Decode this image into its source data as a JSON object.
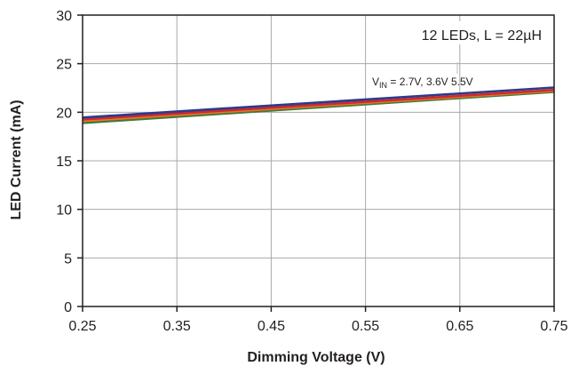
{
  "chart_data": {
    "type": "line",
    "title": "",
    "xlabel": "Dimming Voltage (V)",
    "ylabel": "LED Current (mA)",
    "xlim": [
      0.25,
      0.75
    ],
    "ylim": [
      0,
      30
    ],
    "x_ticks": [
      "0.25",
      "0.35",
      "0.45",
      "0.55",
      "0.65",
      "0.75"
    ],
    "y_ticks": [
      "0",
      "5",
      "10",
      "15",
      "20",
      "25",
      "30"
    ],
    "grid": true,
    "annotations": {
      "condition": "12 LEDs, L = 22µH",
      "vin_main": "V",
      "vin_sub": "IN",
      "vin_values": " = 2.7V, 3.6V 5.5V"
    },
    "series": [
      {
        "color": "#3d7a3a",
        "x": [
          0.25,
          0.75
        ],
        "y": [
          18.9,
          22.1
        ]
      },
      {
        "color": "#e8742b",
        "x": [
          0.25,
          0.75
        ],
        "y": [
          19.1,
          22.2
        ]
      },
      {
        "color": "#cc2b2b",
        "x": [
          0.25,
          0.75
        ],
        "y": [
          19.25,
          22.3
        ]
      },
      {
        "color": "#2e3a8c",
        "x": [
          0.25,
          0.75
        ],
        "y": [
          19.45,
          22.55
        ]
      }
    ]
  }
}
